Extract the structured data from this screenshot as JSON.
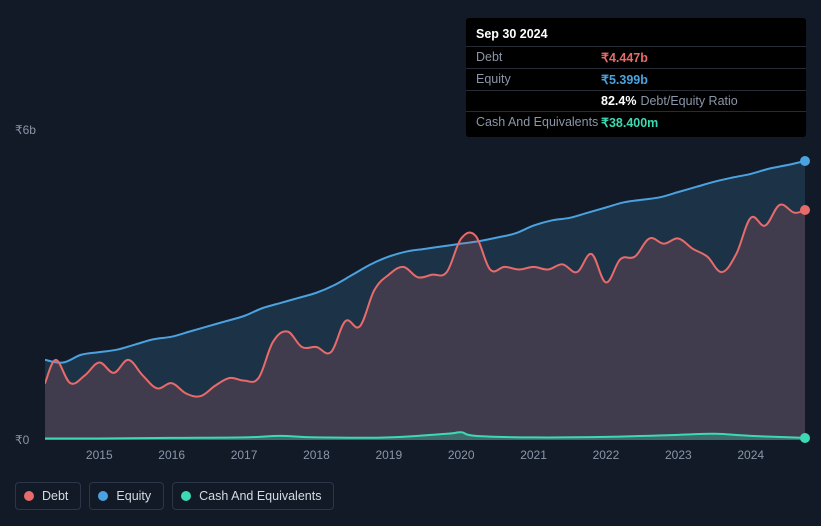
{
  "tooltip": {
    "date": "Sep 30 2024",
    "rows": [
      {
        "label": "Debt",
        "value": "₹4.447b",
        "color": "#e86b6b"
      },
      {
        "label": "Equity",
        "value": "₹5.399b",
        "color": "#4aa3e0"
      },
      {
        "label": "",
        "value": "82.4%",
        "suffix": "Debt/Equity Ratio",
        "color": "#ffffff"
      },
      {
        "label": "Cash And Equivalents",
        "value": "₹38.400m",
        "color": "#3dd9b3"
      }
    ]
  },
  "chart": {
    "type": "area",
    "background_color": "#131a27",
    "grid": false,
    "ylim": [
      0,
      6
    ],
    "y_unit_prefix": "₹",
    "y_unit_suffix": "b",
    "yticks": [
      0,
      6
    ],
    "xlim": [
      2014.25,
      2024.75
    ],
    "xticks": [
      2015,
      2016,
      2017,
      2018,
      2019,
      2020,
      2021,
      2022,
      2023,
      2024
    ],
    "series": [
      {
        "name": "Equity",
        "color": "#4aa3e0",
        "fill_opacity": 0.18,
        "line_width": 2,
        "end_dot": true,
        "points": [
          [
            2014.25,
            1.55
          ],
          [
            2014.5,
            1.5
          ],
          [
            2014.75,
            1.65
          ],
          [
            2015.0,
            1.7
          ],
          [
            2015.25,
            1.75
          ],
          [
            2015.5,
            1.85
          ],
          [
            2015.75,
            1.95
          ],
          [
            2016.0,
            2.0
          ],
          [
            2016.25,
            2.1
          ],
          [
            2016.5,
            2.2
          ],
          [
            2016.75,
            2.3
          ],
          [
            2017.0,
            2.4
          ],
          [
            2017.25,
            2.55
          ],
          [
            2017.5,
            2.65
          ],
          [
            2017.75,
            2.75
          ],
          [
            2018.0,
            2.85
          ],
          [
            2018.25,
            3.0
          ],
          [
            2018.5,
            3.2
          ],
          [
            2018.75,
            3.4
          ],
          [
            2019.0,
            3.55
          ],
          [
            2019.25,
            3.65
          ],
          [
            2019.5,
            3.7
          ],
          [
            2019.75,
            3.75
          ],
          [
            2020.0,
            3.8
          ],
          [
            2020.25,
            3.85
          ],
          [
            2020.5,
            3.92
          ],
          [
            2020.75,
            4.0
          ],
          [
            2021.0,
            4.15
          ],
          [
            2021.25,
            4.25
          ],
          [
            2021.5,
            4.3
          ],
          [
            2021.75,
            4.4
          ],
          [
            2022.0,
            4.5
          ],
          [
            2022.25,
            4.6
          ],
          [
            2022.5,
            4.65
          ],
          [
            2022.75,
            4.7
          ],
          [
            2023.0,
            4.8
          ],
          [
            2023.25,
            4.9
          ],
          [
            2023.5,
            5.0
          ],
          [
            2023.75,
            5.08
          ],
          [
            2024.0,
            5.15
          ],
          [
            2024.25,
            5.25
          ],
          [
            2024.5,
            5.32
          ],
          [
            2024.75,
            5.4
          ]
        ]
      },
      {
        "name": "Debt",
        "color": "#e86b6b",
        "fill_opacity": 0.18,
        "line_width": 2,
        "end_dot": true,
        "points": [
          [
            2014.25,
            1.1
          ],
          [
            2014.4,
            1.55
          ],
          [
            2014.6,
            1.1
          ],
          [
            2014.8,
            1.25
          ],
          [
            2015.0,
            1.5
          ],
          [
            2015.2,
            1.3
          ],
          [
            2015.4,
            1.55
          ],
          [
            2015.6,
            1.25
          ],
          [
            2015.8,
            1.0
          ],
          [
            2016.0,
            1.1
          ],
          [
            2016.2,
            0.9
          ],
          [
            2016.4,
            0.85
          ],
          [
            2016.6,
            1.05
          ],
          [
            2016.8,
            1.2
          ],
          [
            2017.0,
            1.15
          ],
          [
            2017.2,
            1.2
          ],
          [
            2017.4,
            1.9
          ],
          [
            2017.6,
            2.1
          ],
          [
            2017.8,
            1.8
          ],
          [
            2018.0,
            1.8
          ],
          [
            2018.2,
            1.7
          ],
          [
            2018.4,
            2.3
          ],
          [
            2018.6,
            2.2
          ],
          [
            2018.8,
            2.9
          ],
          [
            2019.0,
            3.2
          ],
          [
            2019.2,
            3.35
          ],
          [
            2019.4,
            3.15
          ],
          [
            2019.6,
            3.2
          ],
          [
            2019.8,
            3.25
          ],
          [
            2020.0,
            3.9
          ],
          [
            2020.2,
            3.95
          ],
          [
            2020.4,
            3.3
          ],
          [
            2020.6,
            3.35
          ],
          [
            2020.8,
            3.3
          ],
          [
            2021.0,
            3.35
          ],
          [
            2021.2,
            3.3
          ],
          [
            2021.4,
            3.4
          ],
          [
            2021.6,
            3.25
          ],
          [
            2021.8,
            3.6
          ],
          [
            2022.0,
            3.05
          ],
          [
            2022.2,
            3.5
          ],
          [
            2022.4,
            3.55
          ],
          [
            2022.6,
            3.9
          ],
          [
            2022.8,
            3.8
          ],
          [
            2023.0,
            3.9
          ],
          [
            2023.2,
            3.7
          ],
          [
            2023.4,
            3.55
          ],
          [
            2023.6,
            3.25
          ],
          [
            2023.8,
            3.6
          ],
          [
            2024.0,
            4.3
          ],
          [
            2024.2,
            4.15
          ],
          [
            2024.4,
            4.55
          ],
          [
            2024.6,
            4.4
          ],
          [
            2024.75,
            4.45
          ]
        ]
      },
      {
        "name": "Cash And Equivalents",
        "color": "#3dd9b3",
        "fill_opacity": 0.3,
        "line_width": 2,
        "end_dot": true,
        "points": [
          [
            2014.25,
            0.03
          ],
          [
            2015.0,
            0.03
          ],
          [
            2016.0,
            0.04
          ],
          [
            2017.0,
            0.05
          ],
          [
            2017.5,
            0.08
          ],
          [
            2018.0,
            0.05
          ],
          [
            2019.0,
            0.05
          ],
          [
            2019.8,
            0.12
          ],
          [
            2020.0,
            0.15
          ],
          [
            2020.2,
            0.08
          ],
          [
            2021.0,
            0.05
          ],
          [
            2022.0,
            0.06
          ],
          [
            2023.0,
            0.1
          ],
          [
            2023.5,
            0.12
          ],
          [
            2024.0,
            0.08
          ],
          [
            2024.75,
            0.04
          ]
        ]
      }
    ]
  },
  "legend": {
    "items": [
      {
        "label": "Debt",
        "color": "#e86b6b"
      },
      {
        "label": "Equity",
        "color": "#4aa3e0"
      },
      {
        "label": "Cash And Equivalents",
        "color": "#3dd9b3"
      }
    ]
  }
}
